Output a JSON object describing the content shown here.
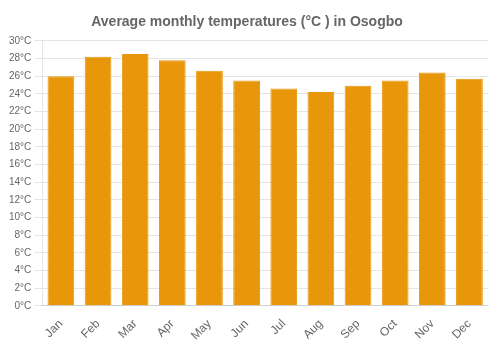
{
  "chart_data": {
    "type": "bar",
    "title": "Average monthly temperatures (°C ) in Osogbo",
    "categories": [
      "Jan",
      "Feb",
      "Mar",
      "Apr",
      "May",
      "Jun",
      "Jul",
      "Aug",
      "Sep",
      "Oct",
      "Nov",
      "Dec"
    ],
    "values": [
      26.0,
      28.2,
      28.5,
      27.8,
      26.6,
      25.5,
      24.6,
      24.2,
      24.9,
      25.5,
      26.4,
      25.7
    ],
    "color": "#E8960A",
    "ylim": [
      0,
      30
    ],
    "yticks": [
      {
        "value": 0,
        "label": "0°C"
      },
      {
        "value": 2,
        "label": "2°C"
      },
      {
        "value": 4,
        "label": "4°C"
      },
      {
        "value": 6,
        "label": "6°C"
      },
      {
        "value": 8,
        "label": "8°C"
      },
      {
        "value": 10,
        "label": "10°C"
      },
      {
        "value": 12,
        "label": "12°C"
      },
      {
        "value": 14,
        "label": "14°C"
      },
      {
        "value": 16,
        "label": "16°C"
      },
      {
        "value": 18,
        "label": "18°C"
      },
      {
        "value": 20,
        "label": "20°C"
      },
      {
        "value": 22,
        "label": "22°C"
      },
      {
        "value": 24,
        "label": "24°C"
      },
      {
        "value": 26,
        "label": "26°C"
      },
      {
        "value": 28,
        "label": "28°C"
      },
      {
        "value": 30,
        "label": "30°C"
      }
    ],
    "grid": true
  }
}
